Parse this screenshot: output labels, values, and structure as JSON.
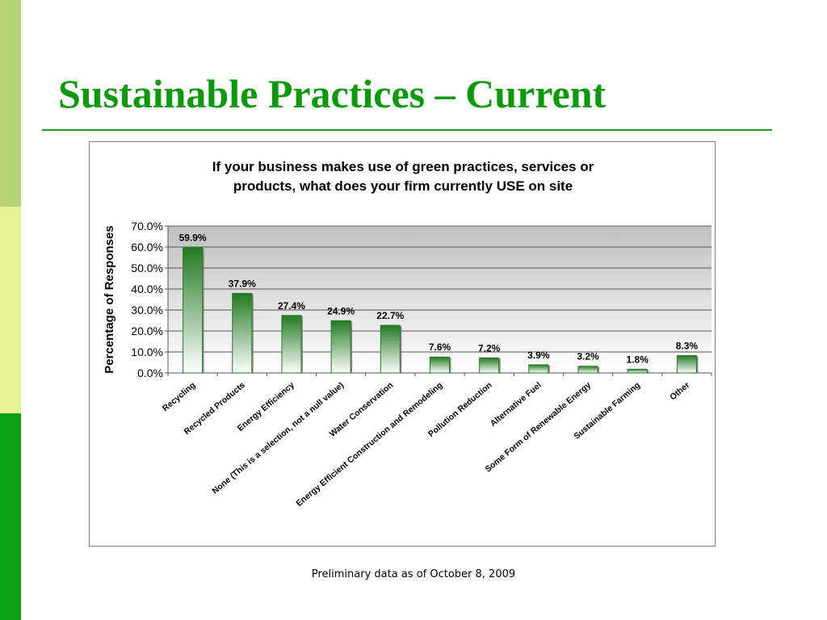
{
  "slide": {
    "title": "Sustainable Practices – Current",
    "footnote": "Preliminary data as of October 8, 2009",
    "colors": {
      "title": "#0a9a0a",
      "rule": "#1aa51a",
      "band_top": "#b6d274",
      "band_middle": "#e4f293",
      "band_bottom": "#09a10f",
      "bar_dark": "#237a23",
      "bar_light": "#ffffff",
      "plot_bg_top": "#c0c0c0",
      "plot_bg_bottom": "#ffffff"
    }
  },
  "chart_data": {
    "type": "bar",
    "title_lines": [
      "If your business makes use of green practices, services or",
      "products, what does your firm currently USE on site"
    ],
    "xlabel": "",
    "ylabel": "Percentage of Responses",
    "ylim": [
      0,
      70
    ],
    "ytick_values": [
      0,
      10,
      20,
      30,
      40,
      50,
      60,
      70
    ],
    "ytick_labels": [
      "0.0%",
      "10.0%",
      "20.0%",
      "30.0%",
      "40.0%",
      "50.0%",
      "60.0%",
      "70.0%"
    ],
    "grid": true,
    "legend": "none",
    "categories": [
      "Recycling",
      "Recycled Products",
      "Energy Efficiency",
      "None (This is a selection, not a null value)",
      "Water Conservation",
      "Energy Efficient Construction and Remodeling",
      "Pollution Reduction",
      "Alternative Fuel",
      "Some Form of Renewable Energy",
      "Sustainable Farming",
      "Other"
    ],
    "values": [
      59.9,
      37.9,
      27.4,
      24.9,
      22.7,
      7.6,
      7.2,
      3.9,
      3.2,
      1.8,
      8.3
    ],
    "data_labels": [
      "59.9%",
      "37.9%",
      "27.4%",
      "24.9%",
      "22.7%",
      "7.6%",
      "7.2%",
      "3.9%",
      "3.2%",
      "1.8%",
      "8.3%"
    ]
  }
}
